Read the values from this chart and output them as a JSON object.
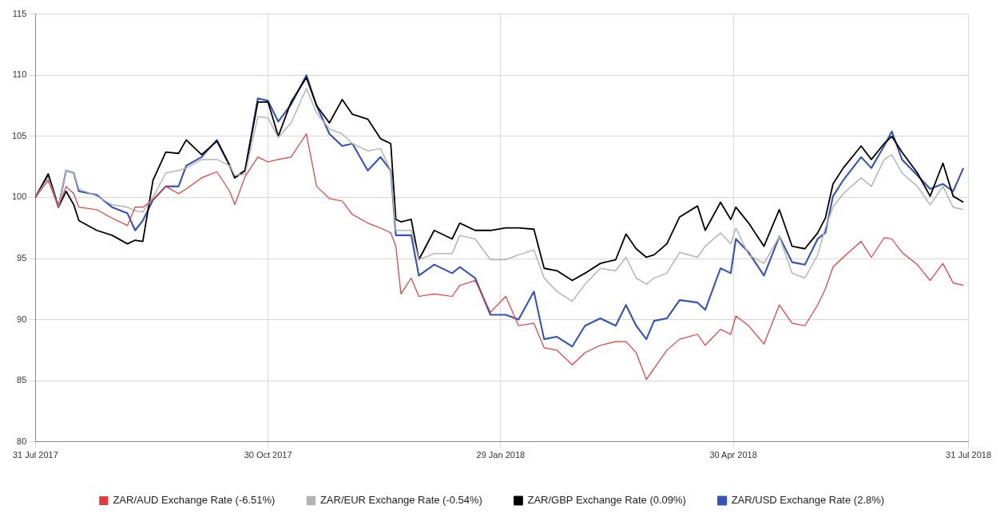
{
  "chart_data": {
    "type": "line",
    "x": [
      "2017-07-31",
      "2017-08-05",
      "2017-08-09",
      "2017-08-12",
      "2017-08-15",
      "2017-08-17",
      "2017-08-24",
      "2017-08-30",
      "2017-09-05",
      "2017-09-08",
      "2017-09-11",
      "2017-09-15",
      "2017-09-20",
      "2017-09-25",
      "2017-09-28",
      "2017-10-04",
      "2017-10-10",
      "2017-10-15",
      "2017-10-17",
      "2017-10-21",
      "2017-10-26",
      "2017-10-30",
      "2017-11-03",
      "2017-11-08",
      "2017-11-14",
      "2017-11-18",
      "2017-11-23",
      "2017-11-28",
      "2017-12-02",
      "2017-12-08",
      "2017-12-13",
      "2017-12-17",
      "2017-12-19",
      "2017-12-21",
      "2017-12-25",
      "2017-12-28",
      "2018-01-03",
      "2018-01-10",
      "2018-01-13",
      "2018-01-19",
      "2018-01-25",
      "2018-01-31",
      "2018-02-05",
      "2018-02-11",
      "2018-02-15",
      "2018-02-20",
      "2018-02-26",
      "2018-03-03",
      "2018-03-09",
      "2018-03-15",
      "2018-03-19",
      "2018-03-23",
      "2018-03-27",
      "2018-03-30",
      "2018-04-04",
      "2018-04-09",
      "2018-04-16",
      "2018-04-19",
      "2018-04-25",
      "2018-04-29",
      "2018-05-01",
      "2018-05-06",
      "2018-05-12",
      "2018-05-18",
      "2018-05-23",
      "2018-05-28",
      "2018-06-02",
      "2018-06-05",
      "2018-06-08",
      "2018-06-12",
      "2018-06-19",
      "2018-06-23",
      "2018-06-28",
      "2018-07-01",
      "2018-07-05",
      "2018-07-11",
      "2018-07-16",
      "2018-07-21",
      "2018-07-25",
      "2018-07-29"
    ],
    "series": [
      {
        "name": "ZAR/AUD Exchange Rate (-6.51%)",
        "color": "#e03a3a",
        "values": [
          100,
          101.4,
          99.2,
          100.9,
          100.3,
          99.2,
          99,
          98.3,
          97.7,
          99.2,
          99.2,
          99.8,
          100.9,
          100.3,
          100.7,
          101.6,
          102.1,
          100.5,
          99.4,
          101.7,
          103.3,
          102.9,
          103.1,
          103.3,
          105.2,
          100.9,
          99.9,
          99.7,
          98.6,
          97.9,
          97.5,
          97.1,
          96,
          92.1,
          93.4,
          91.9,
          92.1,
          91.9,
          92.8,
          93.2,
          90.6,
          91.9,
          89.5,
          89.7,
          87.7,
          87.5,
          86.3,
          87.3,
          87.9,
          88.2,
          88.2,
          87.3,
          85.1,
          86,
          87.5,
          88.4,
          88.8,
          87.9,
          89.2,
          88.8,
          90.3,
          89.5,
          88,
          91.2,
          89.7,
          89.5,
          91.2,
          92.5,
          94.3,
          95.1,
          96.4,
          95.1,
          96.7,
          96.6,
          95.5,
          94.5,
          93.2,
          94.6,
          93,
          92.8
        ]
      },
      {
        "name": "ZAR/EUR Exchange Rate (-0.54%)",
        "color": "#b4b4b4",
        "values": [
          100,
          101.6,
          99.2,
          102.2,
          102,
          100.7,
          100.1,
          99.4,
          99.2,
          98.9,
          98.8,
          100,
          102,
          102.2,
          102.4,
          103.1,
          103.1,
          102.6,
          101.8,
          101.9,
          106.6,
          106.5,
          104.9,
          106.1,
          108.9,
          106.9,
          105.6,
          105.2,
          104.4,
          103.8,
          104,
          102.2,
          97.3,
          97.3,
          97.3,
          94.9,
          95.4,
          95.4,
          96.9,
          96.6,
          94.9,
          94.9,
          95.3,
          95.7,
          93.4,
          92.3,
          91.5,
          92.9,
          94.2,
          94,
          95.1,
          93.4,
          92.9,
          93.4,
          93.8,
          95.5,
          95.1,
          96,
          97.1,
          96.2,
          97.5,
          95.3,
          94.6,
          96.8,
          93.8,
          93.4,
          95.3,
          97.5,
          99.2,
          100.3,
          101.6,
          100.9,
          103.1,
          103.5,
          102,
          100.9,
          99.4,
          100.9,
          99.2,
          99
        ]
      },
      {
        "name": "ZAR/GBP Exchange Rate (0.09%)",
        "color": "#000000",
        "values": [
          100,
          101.9,
          99.2,
          100.5,
          99.4,
          98.1,
          97.3,
          96.9,
          96.2,
          96.5,
          96.4,
          101.4,
          103.7,
          103.6,
          104.7,
          103.5,
          104.6,
          102.6,
          101.6,
          102.2,
          107.8,
          107.8,
          105,
          107.8,
          109.8,
          107.5,
          106.1,
          108,
          106.8,
          106.4,
          104.8,
          104.4,
          98.2,
          98,
          98.2,
          94.9,
          97.3,
          96.6,
          97.9,
          97.3,
          97.3,
          97.5,
          97.5,
          97.4,
          94.2,
          94,
          93.2,
          93.8,
          94.6,
          94.9,
          97,
          95.8,
          95.1,
          95.3,
          96.2,
          98.4,
          99.3,
          97.3,
          99.6,
          98.2,
          99.2,
          97.9,
          96,
          99,
          96,
          95.8,
          97.1,
          98.3,
          101.1,
          102.4,
          104.2,
          103.1,
          104.4,
          105,
          103.7,
          102,
          100.1,
          102.8,
          100.1,
          99.6
        ]
      },
      {
        "name": "ZAR/USD Exchange Rate (2.8%)",
        "color": "#3552b8",
        "values": [
          100,
          101.9,
          99.2,
          102.2,
          102,
          100.5,
          100.2,
          99.2,
          98.7,
          97.3,
          98.1,
          99.8,
          100.9,
          100.9,
          102.6,
          103.3,
          104.7,
          102.6,
          101.6,
          102.2,
          108.1,
          107.9,
          106.2,
          107.6,
          110,
          107.5,
          105.2,
          104.2,
          104.4,
          102.2,
          103.3,
          102.2,
          96.9,
          96.9,
          96.9,
          93.6,
          94.5,
          93.8,
          94.3,
          93.4,
          90.4,
          90.4,
          90,
          92.3,
          88.4,
          88.6,
          87.8,
          89.5,
          90.1,
          89.5,
          91.2,
          89.5,
          88.4,
          89.9,
          90.1,
          91.6,
          91.4,
          90.8,
          94.2,
          93.8,
          96.6,
          95.5,
          93.6,
          96.8,
          94.7,
          94.5,
          96.6,
          97.1,
          100.1,
          101.4,
          103.3,
          102.4,
          104.2,
          105.4,
          103.1,
          101.8,
          100.7,
          101.1,
          100.5,
          102.4
        ]
      }
    ],
    "xlim": [
      "2017-07-31",
      "2018-07-31"
    ],
    "xticks": [
      {
        "value": "2017-07-31",
        "label": "31 Jul 2017"
      },
      {
        "value": "2017-10-30",
        "label": "30 Oct 2017"
      },
      {
        "value": "2018-01-29",
        "label": "29 Jan 2018"
      },
      {
        "value": "2018-04-30",
        "label": "30 Apr 2018"
      },
      {
        "value": "2018-07-31",
        "label": "31 Jul 2018"
      }
    ],
    "ylim": [
      80,
      115
    ],
    "yticks": [
      80,
      85,
      90,
      95,
      100,
      105,
      110,
      115
    ],
    "grid": true,
    "legend": "bottom",
    "marker": "none",
    "line_style": "solid"
  }
}
